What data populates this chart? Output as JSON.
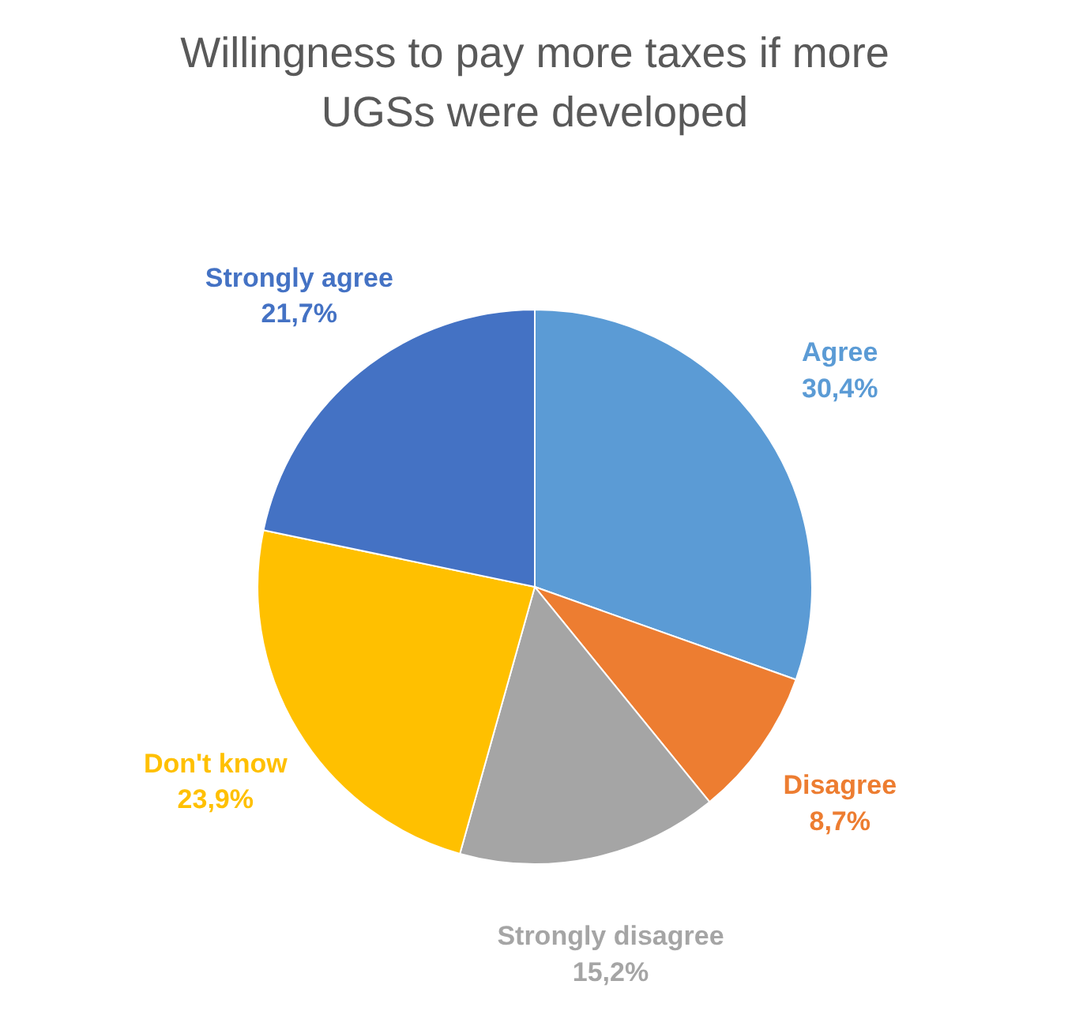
{
  "chart_data": {
    "type": "pie",
    "title": "Willingness to pay more taxes if more\nUGSs were developed",
    "categories": [
      "Agree",
      "Disagree",
      "Strongly disagree",
      "Don't know",
      "Strongly agree"
    ],
    "values": [
      30.4,
      8.7,
      15.2,
      23.9,
      21.7
    ],
    "value_labels": [
      "30,4%",
      "8,7%",
      "15,2%",
      "23,9%",
      "21,7%"
    ],
    "colors": [
      "#5b9bd5",
      "#ed7d31",
      "#a5a5a5",
      "#ffc000",
      "#4472c4"
    ]
  }
}
